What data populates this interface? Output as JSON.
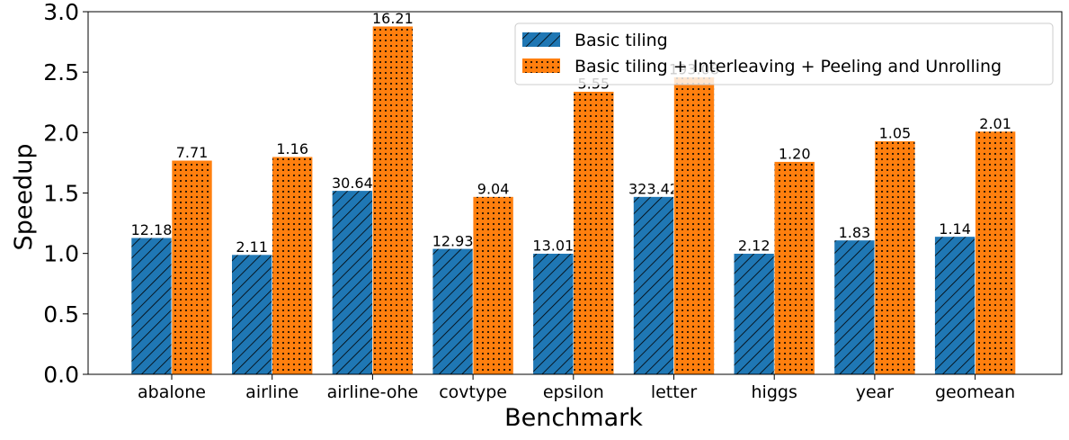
{
  "chart_data": {
    "type": "bar",
    "xlabel": "Benchmark",
    "ylabel": "Speedup",
    "ylim": [
      0,
      3.0
    ],
    "yticks": [
      "0.0",
      "0.5",
      "1.0",
      "1.5",
      "2.0",
      "2.5",
      "3.0"
    ],
    "yticks_values": [
      0,
      0.5,
      1.0,
      1.5,
      2.0,
      2.5,
      3.0
    ],
    "categories": [
      "abalone",
      "airline",
      "airline-ohe",
      "covtype",
      "epsilon",
      "letter",
      "higgs",
      "year",
      "geomean"
    ],
    "legend_position": "top-right",
    "grid": false,
    "series": [
      {
        "name": "Basic tiling",
        "color": "#1f77b4",
        "pattern": "diagonal-hatch",
        "values": [
          1.13,
          0.99,
          1.52,
          1.04,
          1.0,
          1.47,
          1.0,
          1.11,
          1.14
        ],
        "labels": [
          "12.18",
          "2.11",
          "30.64",
          "12.93",
          "13.01",
          "323.42",
          "2.12",
          "1.83",
          "1.14"
        ]
      },
      {
        "name": "Basic tiling + Interleaving + Peeling and Unrolling",
        "color": "#ff7f0e",
        "pattern": "dots",
        "values": [
          1.77,
          1.8,
          2.88,
          1.47,
          2.34,
          2.46,
          1.76,
          1.93,
          2.01
        ],
        "labels": [
          "7.71",
          "1.16",
          "16.21",
          "9.04",
          "5.55",
          "193.08",
          "1.20",
          "1.05",
          "2.01"
        ]
      }
    ]
  }
}
